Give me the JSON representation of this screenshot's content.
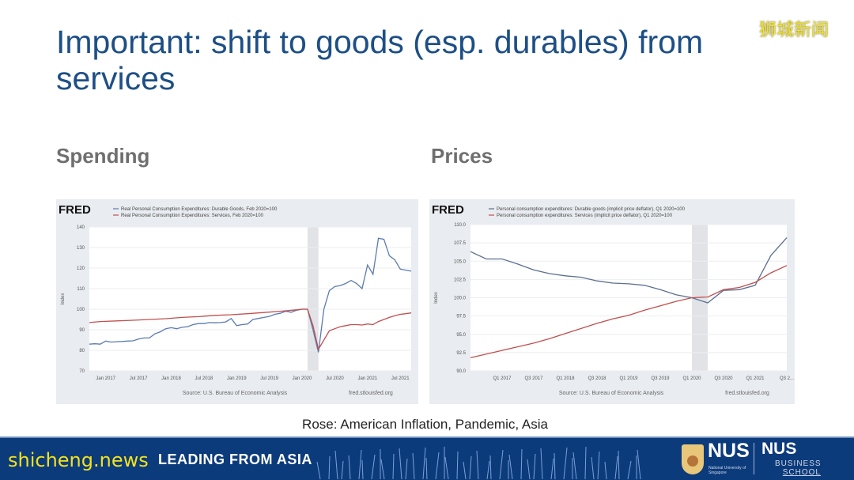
{
  "slide": {
    "title": "Important: shift to goods (esp. durables) from services",
    "left_heading": "Spending",
    "right_heading": "Prices",
    "caption": "Rose: American Inflation, Pandemic, Asia"
  },
  "footer": {
    "motto": "LEADING FROM ASIA",
    "nus_logo_text": "NUS",
    "nus_logo_subtext": "National University of Singapore",
    "business_school_top": "NUS",
    "business_school_line1": "BUSINESS",
    "business_school_line2": "SCHOOL",
    "background_color": "#0c3b7c"
  },
  "watermarks": {
    "top_right": "狮城新闻",
    "bottom_left": "shicheng.news"
  },
  "chart_data": [
    {
      "type": "line",
      "logo": "FRED",
      "title": "",
      "ylabel": "Index",
      "xlabel": "",
      "ylim": [
        70,
        140
      ],
      "yticks": [
        70,
        80,
        90,
        100,
        110,
        120,
        130,
        140
      ],
      "xticks": [
        {
          "x": "2017-01",
          "label": "Jan 2017"
        },
        {
          "x": "2017-07",
          "label": "Jul 2017"
        },
        {
          "x": "2018-01",
          "label": "Jan 2018"
        },
        {
          "x": "2018-07",
          "label": "Jul 2018"
        },
        {
          "x": "2019-01",
          "label": "Jan 2019"
        },
        {
          "x": "2019-07",
          "label": "Jul 2019"
        },
        {
          "x": "2020-01",
          "label": "Jan 2020"
        },
        {
          "x": "2020-07",
          "label": "Jul 2020"
        },
        {
          "x": "2021-01",
          "label": "Jan 2021"
        },
        {
          "x": "2021-07",
          "label": "Jul 2021"
        }
      ],
      "xrange": [
        "2016-10",
        "2021-09"
      ],
      "recession_shading": [
        "2020-02",
        "2020-04"
      ],
      "grid": true,
      "legend": "top",
      "source": "Source: U.S. Bureau of Economic Analysis",
      "site": "fred.stlouisfed.org",
      "series": [
        {
          "name": "Real Personal Consumption Expenditures: Durable Goods, Feb 2020=100",
          "color": "#5a7bb0",
          "x": [
            "2016-10",
            "2016-11",
            "2016-12",
            "2017-01",
            "2017-02",
            "2017-03",
            "2017-04",
            "2017-05",
            "2017-06",
            "2017-07",
            "2017-08",
            "2017-09",
            "2017-10",
            "2017-11",
            "2017-12",
            "2018-01",
            "2018-02",
            "2018-03",
            "2018-04",
            "2018-05",
            "2018-06",
            "2018-07",
            "2018-08",
            "2018-09",
            "2018-10",
            "2018-11",
            "2018-12",
            "2019-01",
            "2019-02",
            "2019-03",
            "2019-04",
            "2019-05",
            "2019-06",
            "2019-07",
            "2019-08",
            "2019-09",
            "2019-10",
            "2019-11",
            "2019-12",
            "2020-01",
            "2020-02",
            "2020-03",
            "2020-04",
            "2020-05",
            "2020-06",
            "2020-07",
            "2020-08",
            "2020-09",
            "2020-10",
            "2020-11",
            "2020-12",
            "2021-01",
            "2021-02",
            "2021-03",
            "2021-04",
            "2021-05",
            "2021-06",
            "2021-07",
            "2021-08",
            "2021-09"
          ],
          "values": [
            83,
            83.2,
            83,
            84.5,
            84,
            84.2,
            84.3,
            84.5,
            84.6,
            85.5,
            86,
            86,
            88,
            89,
            90.5,
            91,
            90.5,
            91.2,
            91.5,
            92.5,
            93,
            93,
            93.5,
            93.4,
            93.5,
            93.8,
            95.5,
            92,
            92.5,
            92.8,
            95,
            95.5,
            96,
            96.5,
            97.5,
            98,
            99,
            98.5,
            99.5,
            100,
            100,
            90,
            79,
            100,
            109,
            111,
            111.5,
            112.5,
            114,
            112.5,
            110,
            121.5,
            117,
            134.5,
            134,
            126,
            124,
            119.5,
            119,
            118.5
          ]
        },
        {
          "name": "Real Personal Consumption Expenditures: Services, Feb 2020=100",
          "color": "#c0504d",
          "x": [
            "2016-10",
            "2016-12",
            "2017-03",
            "2017-06",
            "2017-09",
            "2017-12",
            "2018-03",
            "2018-06",
            "2018-09",
            "2018-12",
            "2019-03",
            "2019-06",
            "2019-09",
            "2019-12",
            "2020-01",
            "2020-02",
            "2020-03",
            "2020-04",
            "2020-05",
            "2020-06",
            "2020-07",
            "2020-08",
            "2020-09",
            "2020-10",
            "2020-11",
            "2020-12",
            "2021-01",
            "2021-02",
            "2021-03",
            "2021-04",
            "2021-05",
            "2021-06",
            "2021-07",
            "2021-08",
            "2021-09"
          ],
          "values": [
            93.5,
            94,
            94.3,
            94.6,
            95,
            95.4,
            96,
            96.4,
            97,
            97.3,
            97.8,
            98.4,
            99,
            99.7,
            100,
            100,
            92,
            80.5,
            85,
            89.5,
            90.5,
            91.5,
            92,
            92.5,
            92.5,
            92.3,
            92.8,
            92.5,
            94,
            95,
            96,
            96.8,
            97.5,
            97.8,
            98.2
          ]
        }
      ]
    },
    {
      "type": "line",
      "logo": "FRED",
      "title": "",
      "ylabel": "Index",
      "xlabel": "",
      "ylim": [
        90,
        110
      ],
      "yticks": [
        "90.0",
        "92.5",
        "95.0",
        "97.5",
        "100.0",
        "102.5",
        "105.0",
        "107.5",
        "110.0"
      ],
      "xticks": [
        {
          "x": "Q1 2017",
          "label": "Q1 2017"
        },
        {
          "x": "Q3 2017",
          "label": "Q3 2017"
        },
        {
          "x": "Q1 2018",
          "label": "Q1 2018"
        },
        {
          "x": "Q3 2018",
          "label": "Q3 2018"
        },
        {
          "x": "Q1 2019",
          "label": "Q1 2019"
        },
        {
          "x": "Q3 2019",
          "label": "Q3 2019"
        },
        {
          "x": "Q1 2020",
          "label": "Q1 2020"
        },
        {
          "x": "Q3 2020",
          "label": "Q3 2020"
        },
        {
          "x": "Q1 2021",
          "label": "Q1 2021"
        },
        {
          "x": "Q3 2021",
          "label": "Q3 2..."
        }
      ],
      "recession_shading": [
        "Q1 2020",
        "Q2 2020"
      ],
      "grid": true,
      "legend": "top",
      "source": "Source: U.S. Bureau of Economic Analysis",
      "site": "fred.stlouisfed.org",
      "x": [
        "Q3 2016",
        "Q4 2016",
        "Q1 2017",
        "Q2 2017",
        "Q3 2017",
        "Q4 2017",
        "Q1 2018",
        "Q2 2018",
        "Q3 2018",
        "Q4 2018",
        "Q1 2019",
        "Q2 2019",
        "Q3 2019",
        "Q4 2019",
        "Q1 2020",
        "Q2 2020",
        "Q3 2020",
        "Q4 2020",
        "Q1 2021",
        "Q2 2021",
        "Q3 2021"
      ],
      "series": [
        {
          "name": "Personal consumption expenditures: Durable goods (implicit price deflator), Q1 2020=100",
          "color": "#5b6f8f",
          "values": [
            106.3,
            105.3,
            105.3,
            104.6,
            103.8,
            103.3,
            103.0,
            102.8,
            102.3,
            102.0,
            101.9,
            101.7,
            101.1,
            100.4,
            100.0,
            99.3,
            101.0,
            101.1,
            101.7,
            105.8,
            108.2
          ]
        },
        {
          "name": "Personal consumption expenditures: Services (implicit price deflator), Q1 2020=100",
          "color": "#c0504d",
          "values": [
            91.8,
            92.3,
            92.8,
            93.3,
            93.8,
            94.4,
            95.1,
            95.8,
            96.5,
            97.1,
            97.6,
            98.3,
            98.9,
            99.5,
            100.0,
            100.1,
            101.1,
            101.4,
            102.1,
            103.4,
            104.4
          ]
        }
      ]
    }
  ]
}
